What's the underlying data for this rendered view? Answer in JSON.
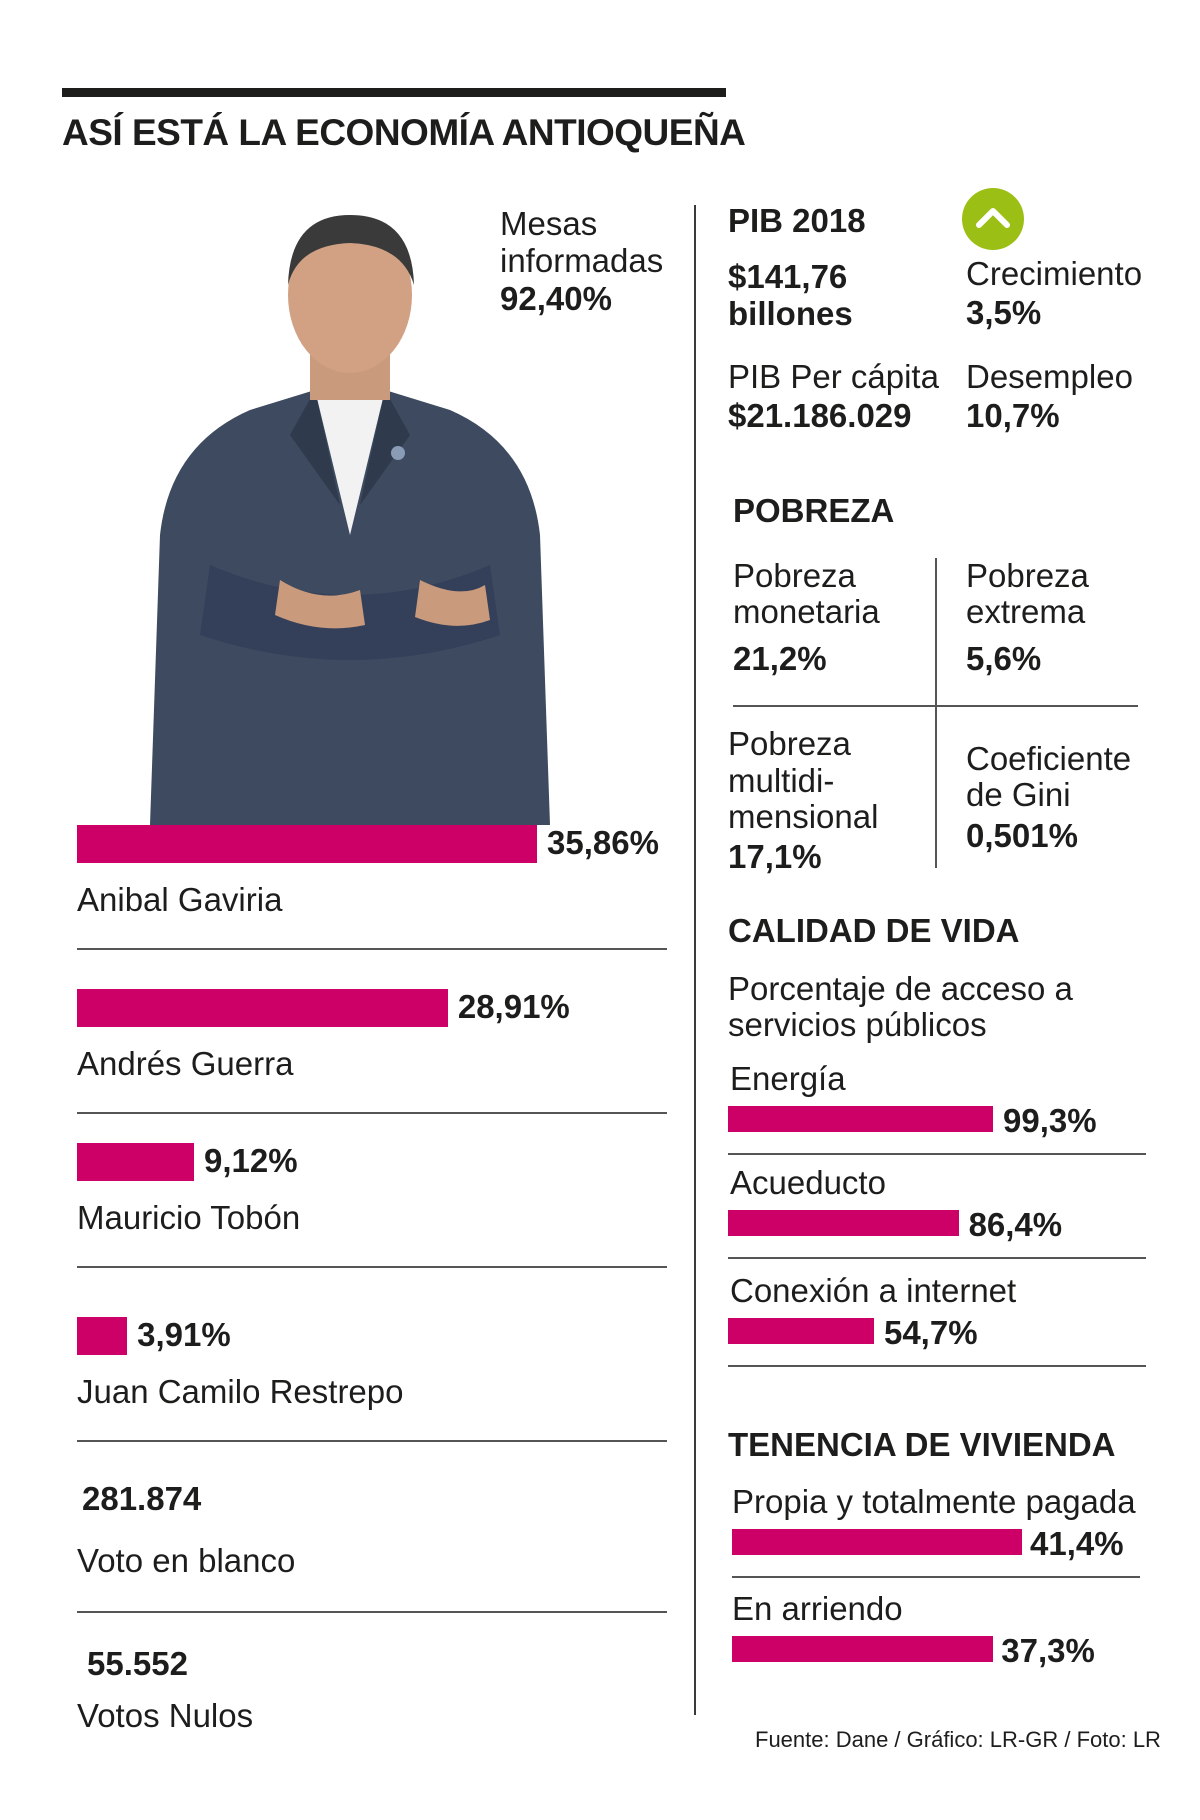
{
  "title": "ASÍ ESTÁ LA ECONOMÍA ANTIOQUEÑA",
  "mesas": {
    "label_line1": "Mesas",
    "label_line2": "informadas",
    "value": "92,40%"
  },
  "colors": {
    "bar": "#cc0066",
    "indicator": "#9cbf16",
    "text": "#1d1d1b"
  },
  "chart_data": [
    {
      "type": "bar",
      "orientation": "horizontal",
      "categories": [
        "Anibal Gaviria",
        "Andrés Guerra",
        "Mauricio Tobón",
        "Juan Camilo Restrepo"
      ],
      "values": [
        35.86,
        28.91,
        9.12,
        3.91
      ],
      "labels": [
        "35,86%",
        "28,91%",
        "9,12%",
        "3,91%"
      ],
      "title": ""
    },
    {
      "type": "bar",
      "orientation": "horizontal",
      "title": "CALIDAD DE VIDA",
      "subtitle": "Porcentaje de acceso a servicios públicos",
      "categories": [
        "Energía",
        "Acueducto",
        "Conexión a internet"
      ],
      "values": [
        99.3,
        86.4,
        54.7
      ],
      "labels": [
        "99,3%",
        "86,4%",
        "54,7%"
      ]
    },
    {
      "type": "bar",
      "orientation": "horizontal",
      "title": "TENENCIA DE VIVIENDA",
      "categories": [
        "Propia y totalmente pagada",
        "En arriendo"
      ],
      "values": [
        41.4,
        37.3
      ],
      "labels": [
        "41,4%",
        "37,3%"
      ]
    }
  ],
  "other_votes": [
    {
      "value": "281.874",
      "label": "Voto en blanco"
    },
    {
      "value": "55.552",
      "label": "Votos Nulos"
    }
  ],
  "pib": {
    "title": "PIB 2018",
    "value_line1": "$141,76",
    "value_line2": "billones",
    "growth_icon": "chevron-up-icon",
    "growth_label": "Crecimiento",
    "growth_value": "3,5%",
    "percapita_label": "PIB Per cápita",
    "percapita_value": "$21.186.029",
    "unemployment_label": "Desempleo",
    "unemployment_value": "10,7%"
  },
  "pobreza": {
    "title": "POBREZA",
    "monetaria_line1": "Pobreza",
    "monetaria_line2": "monetaria",
    "monetaria_value": "21,2%",
    "extrema_line1": "Pobreza",
    "extrema_line2": "extrema",
    "extrema_value": "5,6%",
    "multi_line1": "Pobreza",
    "multi_line2": "multidi-",
    "multi_line3": "mensional",
    "multi_value": "17,1%",
    "gini_line1": "Coeficiente",
    "gini_line2": "de Gini",
    "gini_value": "0,501%"
  },
  "calidad": {
    "subtitle_line1": "Porcentaje de acceso a",
    "subtitle_line2": "servicios públicos"
  },
  "source": "Fuente: Dane / Gráfico: LR-GR / Foto: LR"
}
